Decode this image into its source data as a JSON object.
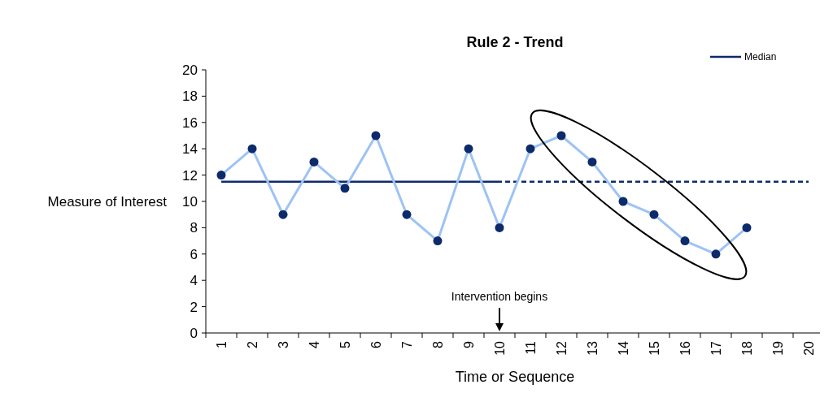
{
  "chart_data": {
    "type": "line",
    "title": "Rule 2 - Trend",
    "xlabel": "Time or Sequence",
    "ylabel": "Measure of Interest",
    "categories": [
      "1",
      "2",
      "3",
      "4",
      "5",
      "6",
      "7",
      "8",
      "9",
      "10",
      "11",
      "12",
      "13",
      "14",
      "15",
      "16",
      "17",
      "18",
      "19",
      "20"
    ],
    "series": [
      {
        "color": "#9dc3f5",
        "marker": "circle",
        "values": [
          12,
          14,
          9,
          13,
          11,
          15,
          9,
          7,
          14,
          8,
          14,
          15,
          13,
          10,
          9,
          7,
          6,
          8,
          null,
          null
        ]
      },
      {
        "name": "Median",
        "color": "#0d2a6b",
        "marker": "none",
        "line_style": "solid",
        "values": [
          11.5,
          11.5,
          11.5,
          11.5,
          11.5,
          11.5,
          11.5,
          11.5,
          11.5,
          11.5,
          null,
          null,
          null,
          null,
          null,
          null,
          null,
          null,
          null,
          null
        ]
      },
      {
        "color": "#0d2a6b",
        "marker": "none",
        "line_style": "dashed",
        "values": [
          null,
          null,
          null,
          null,
          null,
          null,
          null,
          null,
          null,
          11.5,
          11.5,
          11.5,
          11.5,
          11.5,
          11.5,
          11.5,
          11.5,
          11.5,
          11.5,
          11.5
        ]
      }
    ],
    "ylim": [
      0,
      20
    ],
    "yticks": [
      0,
      2,
      4,
      6,
      8,
      10,
      12,
      14,
      16,
      18,
      20
    ],
    "grid": false,
    "legend": "top right",
    "annotations": [
      {
        "text": "Intervention begins",
        "x": "10"
      }
    ]
  }
}
